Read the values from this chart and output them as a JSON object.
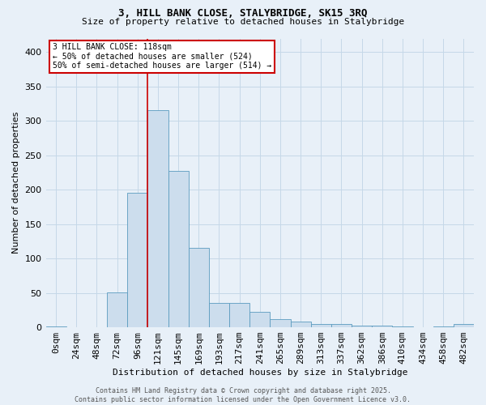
{
  "title1": "3, HILL BANK CLOSE, STALYBRIDGE, SK15 3RQ",
  "title2": "Size of property relative to detached houses in Stalybridge",
  "xlabel": "Distribution of detached houses by size in Stalybridge",
  "ylabel": "Number of detached properties",
  "bar_labels": [
    "0sqm",
    "24sqm",
    "48sqm",
    "72sqm",
    "96sqm",
    "121sqm",
    "145sqm",
    "169sqm",
    "193sqm",
    "217sqm",
    "241sqm",
    "265sqm",
    "289sqm",
    "313sqm",
    "337sqm",
    "362sqm",
    "386sqm",
    "410sqm",
    "434sqm",
    "458sqm",
    "482sqm"
  ],
  "bar_values": [
    1,
    0,
    0,
    51,
    196,
    316,
    228,
    116,
    35,
    35,
    23,
    12,
    8,
    5,
    5,
    3,
    2,
    1,
    0,
    1,
    5
  ],
  "bar_color": "#ccdded",
  "bar_edge_color": "#5b9bbf",
  "red_line_index": 5,
  "annotation_text": "3 HILL BANK CLOSE: 118sqm\n← 50% of detached houses are smaller (524)\n50% of semi-detached houses are larger (514) →",
  "annotation_box_color": "#ffffff",
  "annotation_box_edge": "#cc0000",
  "footer1": "Contains HM Land Registry data © Crown copyright and database right 2025.",
  "footer2": "Contains public sector information licensed under the Open Government Licence v3.0.",
  "ylim": [
    0,
    420
  ],
  "yticks": [
    0,
    50,
    100,
    150,
    200,
    250,
    300,
    350,
    400
  ],
  "grid_color": "#c5d8e8",
  "bg_color": "#e8f0f8",
  "title1_fontsize": 9,
  "title2_fontsize": 8,
  "ylabel_fontsize": 8,
  "xlabel_fontsize": 8,
  "tick_fontsize": 8,
  "annot_fontsize": 7,
  "footer_fontsize": 6
}
